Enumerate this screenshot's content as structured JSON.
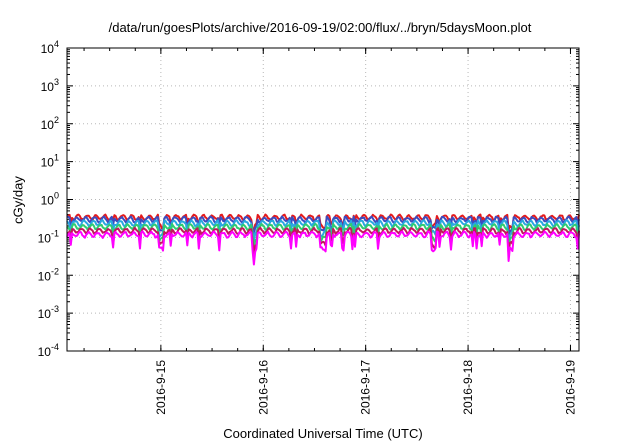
{
  "chart_data": {
    "type": "line",
    "title": "/data/run/goesPlots/archive/2016-09-19/02:00/flux/../bryn/5daysMoon.plot",
    "xlabel": "Coordinated Universal Time (UTC)",
    "ylabel": "cGy/day",
    "y_scale": "log",
    "ylim_exp": [
      -4,
      4
    ],
    "y_ticks": [
      {
        "base": "10",
        "exp": "-4",
        "value_exp": -4
      },
      {
        "base": "10",
        "exp": "-3",
        "value_exp": -3
      },
      {
        "base": "10",
        "exp": "-2",
        "value_exp": -2
      },
      {
        "base": "10",
        "exp": "-1",
        "value_exp": -1
      },
      {
        "base": "10",
        "exp": "0",
        "value_exp": 0
      },
      {
        "base": "10",
        "exp": "1",
        "value_exp": 1
      },
      {
        "base": "10",
        "exp": "2",
        "value_exp": 2
      },
      {
        "base": "10",
        "exp": "3",
        "value_exp": 3
      },
      {
        "base": "10",
        "exp": "4",
        "value_exp": 4
      }
    ],
    "x_range": [
      "2016-09-14 02:00",
      "2016-09-19 02:00"
    ],
    "x_ticks": [
      {
        "label": "2016-9-15",
        "date": "2016-09-15 00:00"
      },
      {
        "label": "2016-9-16",
        "date": "2016-09-16 00:00"
      },
      {
        "label": "2016-9-17",
        "date": "2016-09-17 00:00"
      },
      {
        "label": "2016-9-18",
        "date": "2016-09-18 00:00"
      },
      {
        "label": "2016-9-19",
        "date": "2016-09-19 00:00"
      }
    ],
    "grid": true,
    "legend": "none",
    "dip_dates": [
      "2016-09-15 00:00",
      "2016-09-15 22:00",
      "2016-09-16 14:00",
      "2016-09-17 16:00",
      "2016-09-18 10:00"
    ],
    "series": [
      {
        "color": "#e41a1c",
        "level": 0.34
      },
      {
        "color": "#3b4cc0",
        "level": 0.3
      },
      {
        "color": "#29a7e0",
        "level": 0.24
      },
      {
        "color": "#2ecc71",
        "level": 0.19
      },
      {
        "color": "#c2185b",
        "level": 0.15
      },
      {
        "color": "#ff00ff",
        "level": 0.12
      }
    ]
  }
}
